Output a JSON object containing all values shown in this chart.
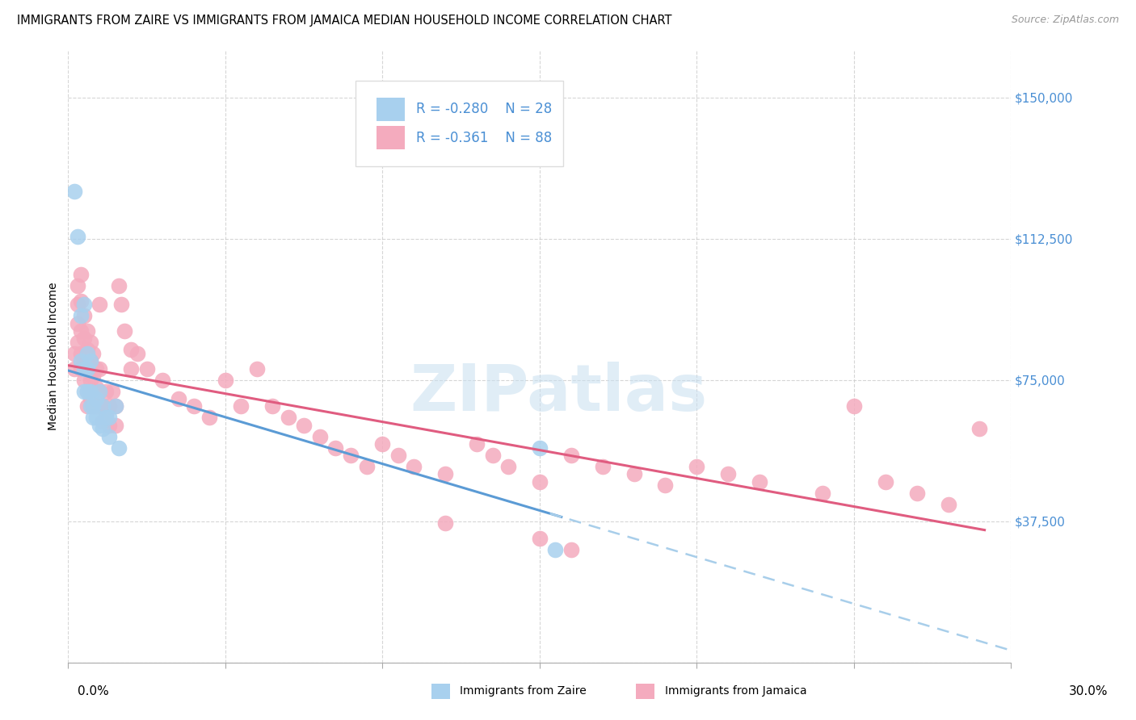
{
  "title": "IMMIGRANTS FROM ZAIRE VS IMMIGRANTS FROM JAMAICA MEDIAN HOUSEHOLD INCOME CORRELATION CHART",
  "source": "Source: ZipAtlas.com",
  "ylabel": "Median Household Income",
  "yticks": [
    0,
    37500,
    75000,
    112500,
    150000
  ],
  "ytick_labels": [
    "",
    "$37,500",
    "$75,000",
    "$112,500",
    "$150,000"
  ],
  "xlim": [
    0.0,
    0.3
  ],
  "ylim": [
    0,
    162500
  ],
  "watermark": "ZIPatlas",
  "legend_zaire_R": "R = -0.280",
  "legend_zaire_N": "N = 28",
  "legend_jamaica_R": "R = -0.361",
  "legend_jamaica_N": "N = 88",
  "zaire_color": "#A8D0EE",
  "zaire_line_color": "#5B9BD5",
  "zaire_line_dash_color": "#A8CEEA",
  "jamaica_color": "#F4ABBE",
  "jamaica_line_color": "#E05C80",
  "zaire_points": [
    [
      0.002,
      125000
    ],
    [
      0.003,
      113000
    ],
    [
      0.004,
      92000
    ],
    [
      0.004,
      80000
    ],
    [
      0.005,
      95000
    ],
    [
      0.005,
      78000
    ],
    [
      0.005,
      72000
    ],
    [
      0.006,
      82000
    ],
    [
      0.006,
      78000
    ],
    [
      0.006,
      72000
    ],
    [
      0.007,
      80000
    ],
    [
      0.007,
      72000
    ],
    [
      0.007,
      68000
    ],
    [
      0.008,
      68000
    ],
    [
      0.008,
      65000
    ],
    [
      0.009,
      70000
    ],
    [
      0.009,
      65000
    ],
    [
      0.01,
      72000
    ],
    [
      0.01,
      63000
    ],
    [
      0.011,
      68000
    ],
    [
      0.011,
      62000
    ],
    [
      0.012,
      65000
    ],
    [
      0.013,
      65000
    ],
    [
      0.013,
      60000
    ],
    [
      0.015,
      68000
    ],
    [
      0.016,
      57000
    ],
    [
      0.15,
      57000
    ],
    [
      0.155,
      30000
    ]
  ],
  "jamaica_points": [
    [
      0.002,
      82000
    ],
    [
      0.002,
      78000
    ],
    [
      0.003,
      100000
    ],
    [
      0.003,
      95000
    ],
    [
      0.003,
      90000
    ],
    [
      0.003,
      85000
    ],
    [
      0.004,
      103000
    ],
    [
      0.004,
      96000
    ],
    [
      0.004,
      88000
    ],
    [
      0.004,
      82000
    ],
    [
      0.004,
      78000
    ],
    [
      0.005,
      92000
    ],
    [
      0.005,
      86000
    ],
    [
      0.005,
      80000
    ],
    [
      0.005,
      75000
    ],
    [
      0.006,
      88000
    ],
    [
      0.006,
      83000
    ],
    [
      0.006,
      78000
    ],
    [
      0.006,
      72000
    ],
    [
      0.006,
      68000
    ],
    [
      0.007,
      85000
    ],
    [
      0.007,
      80000
    ],
    [
      0.007,
      75000
    ],
    [
      0.007,
      70000
    ],
    [
      0.008,
      82000
    ],
    [
      0.008,
      76000
    ],
    [
      0.008,
      72000
    ],
    [
      0.008,
      68000
    ],
    [
      0.009,
      78000
    ],
    [
      0.009,
      73000
    ],
    [
      0.009,
      68000
    ],
    [
      0.01,
      95000
    ],
    [
      0.01,
      78000
    ],
    [
      0.01,
      72000
    ],
    [
      0.011,
      68000
    ],
    [
      0.011,
      64000
    ],
    [
      0.012,
      72000
    ],
    [
      0.012,
      66000
    ],
    [
      0.013,
      68000
    ],
    [
      0.013,
      63000
    ],
    [
      0.014,
      72000
    ],
    [
      0.015,
      68000
    ],
    [
      0.015,
      63000
    ],
    [
      0.016,
      100000
    ],
    [
      0.017,
      95000
    ],
    [
      0.018,
      88000
    ],
    [
      0.02,
      83000
    ],
    [
      0.02,
      78000
    ],
    [
      0.022,
      82000
    ],
    [
      0.025,
      78000
    ],
    [
      0.03,
      75000
    ],
    [
      0.035,
      70000
    ],
    [
      0.04,
      68000
    ],
    [
      0.045,
      65000
    ],
    [
      0.05,
      75000
    ],
    [
      0.055,
      68000
    ],
    [
      0.06,
      78000
    ],
    [
      0.065,
      68000
    ],
    [
      0.07,
      65000
    ],
    [
      0.075,
      63000
    ],
    [
      0.08,
      60000
    ],
    [
      0.085,
      57000
    ],
    [
      0.09,
      55000
    ],
    [
      0.095,
      52000
    ],
    [
      0.1,
      58000
    ],
    [
      0.105,
      55000
    ],
    [
      0.11,
      52000
    ],
    [
      0.12,
      50000
    ],
    [
      0.13,
      58000
    ],
    [
      0.135,
      55000
    ],
    [
      0.14,
      52000
    ],
    [
      0.15,
      48000
    ],
    [
      0.16,
      55000
    ],
    [
      0.17,
      52000
    ],
    [
      0.18,
      50000
    ],
    [
      0.19,
      47000
    ],
    [
      0.2,
      52000
    ],
    [
      0.21,
      50000
    ],
    [
      0.22,
      48000
    ],
    [
      0.24,
      45000
    ],
    [
      0.25,
      68000
    ],
    [
      0.26,
      48000
    ],
    [
      0.27,
      45000
    ],
    [
      0.28,
      42000
    ],
    [
      0.29,
      62000
    ],
    [
      0.12,
      37000
    ],
    [
      0.15,
      33000
    ],
    [
      0.16,
      30000
    ]
  ],
  "title_fontsize": 10.5,
  "source_fontsize": 9,
  "label_fontsize": 10,
  "tick_fontsize": 11,
  "legend_fontsize": 12
}
